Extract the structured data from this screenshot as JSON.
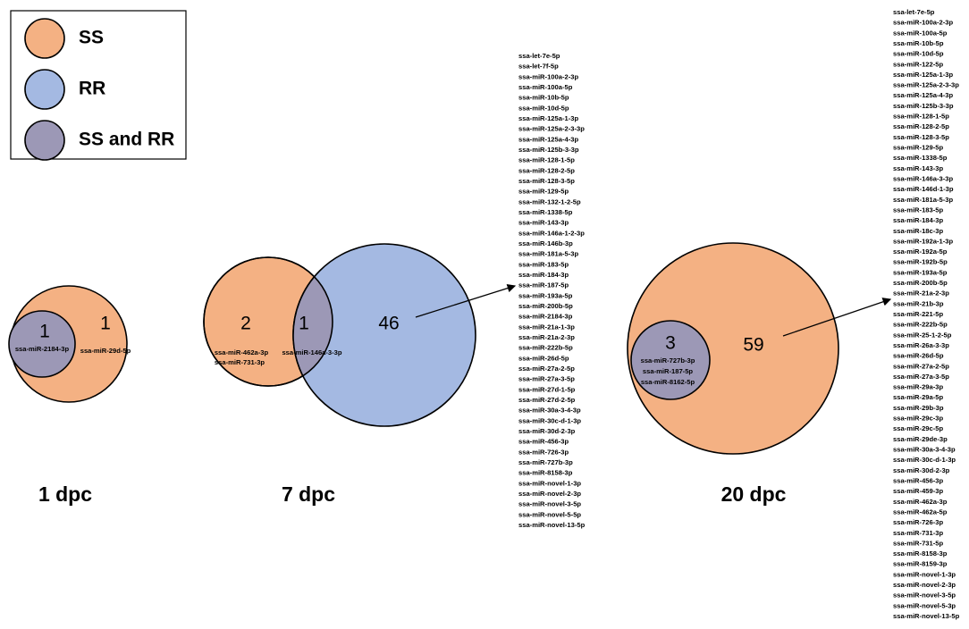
{
  "legend": {
    "items": [
      {
        "label": "SS"
      },
      {
        "label": "RR"
      },
      {
        "label": "SS and RR"
      }
    ]
  },
  "panels": [
    {
      "title": "1 dpc",
      "regions": [
        {
          "count": "1",
          "labels": [
            "ssa-miR-2184-3p"
          ]
        },
        {
          "count": "1",
          "labels": [
            "ssa-miR-29d-5p"
          ]
        }
      ]
    },
    {
      "title": "7 dpc",
      "regions": [
        {
          "count": "2",
          "labels": [
            "ssa-miR-462a-3p",
            "ssa-miR-731-3p"
          ]
        },
        {
          "count": "1",
          "labels": [
            "ssa-miR-146a-3-3p"
          ]
        },
        {
          "count": "46",
          "labels": []
        }
      ]
    },
    {
      "title": "20 dpc",
      "regions": [
        {
          "count": "3",
          "labels": [
            "ssa-miR-727b-3p",
            "ssa-miR-187-5p",
            "ssa-miR-8162-5p"
          ]
        },
        {
          "count": "59",
          "labels": []
        }
      ]
    }
  ],
  "lists": [
    [
      "ssa-let-7e-5p",
      "ssa-let-7f-5p",
      "ssa-miR-100a-2-3p",
      "ssa-miR-100a-5p",
      "ssa-miR-10b-5p",
      "ssa-miR-10d-5p",
      "ssa-miR-125a-1-3p",
      "ssa-miR-125a-2-3-3p",
      "ssa-miR-125a-4-3p",
      "ssa-miR-125b-3-3p",
      "ssa-miR-128-1-5p",
      "ssa-miR-128-2-5p",
      "ssa-miR-128-3-5p",
      "ssa-miR-129-5p",
      "ssa-miR-132-1-2-5p",
      "ssa-miR-1338-5p",
      "ssa-miR-143-3p",
      "ssa-miR-146a-1-2-3p",
      "ssa-miR-146b-3p",
      "ssa-miR-181a-5-3p",
      "ssa-miR-183-5p",
      "ssa-miR-184-3p",
      "ssa-miR-187-5p",
      "ssa-miR-193a-5p",
      "ssa-miR-200b-5p",
      "ssa-miR-2184-3p",
      "ssa-miR-21a-1-3p",
      "ssa-miR-21a-2-3p",
      "ssa-miR-222b-5p",
      "ssa-miR-26d-5p",
      "ssa-miR-27a-2-5p",
      "ssa-miR-27a-3-5p",
      "ssa-miR-27d-1-5p",
      "ssa-miR-27d-2-5p",
      "ssa-miR-30a-3-4-3p",
      "ssa-miR-30c-d-1-3p",
      "ssa-miR-30d-2-3p",
      "ssa-miR-456-3p",
      "ssa-miR-726-3p",
      "ssa-miR-727b-3p",
      "ssa-miR-8158-3p",
      "ssa-miR-novel-1-3p",
      "ssa-miR-novel-2-3p",
      "ssa-miR-novel-3-5p",
      "ssa-miR-novel-5-5p",
      "ssa-miR-novel-13-5p"
    ],
    [
      "ssa-let-7e-5p",
      "ssa-miR-100a-2-3p",
      "ssa-miR-100a-5p",
      "ssa-miR-10b-5p",
      "ssa-miR-10d-5p",
      "ssa-miR-122-5p",
      "ssa-miR-125a-1-3p",
      "ssa-miR-125a-2-3-3p",
      "ssa-miR-125a-4-3p",
      "ssa-miR-125b-3-3p",
      "ssa-miR-128-1-5p",
      "ssa-miR-128-2-5p",
      "ssa-miR-128-3-5p",
      "ssa-miR-129-5p",
      "ssa-miR-1338-5p",
      "ssa-miR-143-3p",
      "ssa-miR-146a-3-3p",
      "ssa-miR-146d-1-3p",
      "ssa-miR-181a-5-3p",
      "ssa-miR-183-5p",
      "ssa-miR-184-3p",
      "ssa-miR-18c-3p",
      "ssa-miR-192a-1-3p",
      "ssa-miR-192a-5p",
      "ssa-miR-192b-5p",
      "ssa-miR-193a-5p",
      "ssa-miR-200b-5p",
      "ssa-miR-21a-2-3p",
      "ssa-miR-21b-3p",
      "ssa-miR-221-5p",
      "ssa-miR-222b-5p",
      "ssa-miR-25-1-2-5p",
      "ssa-miR-26a-3-3p",
      "ssa-miR-26d-5p",
      "ssa-miR-27a-2-5p",
      "ssa-miR-27a-3-5p",
      "ssa-miR-29a-3p",
      "ssa-miR-29a-5p",
      "ssa-miR-29b-3p",
      "ssa-miR-29c-3p",
      "ssa-miR-29c-5p",
      "ssa-miR-29de-3p",
      "ssa-miR-30a-3-4-3p",
      "ssa-miR-30c-d-1-3p",
      "ssa-miR-30d-2-3p",
      "ssa-miR-456-3p",
      "ssa-miR-459-3p",
      "ssa-miR-462a-3p",
      "ssa-miR-462a-5p",
      "ssa-miR-726-3p",
      "ssa-miR-731-3p",
      "ssa-miR-731-5p",
      "ssa-miR-8158-3p",
      "ssa-miR-8159-3p",
      "ssa-miR-novel-1-3p",
      "ssa-miR-novel-2-3p",
      "ssa-miR-novel-3-5p",
      "ssa-miR-novel-5-3p",
      "ssa-miR-novel-13-5p"
    ]
  ]
}
